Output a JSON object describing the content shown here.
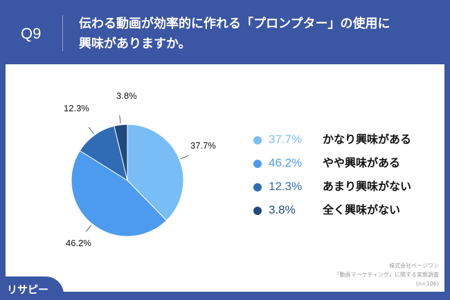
{
  "header": {
    "q_label": "Q9",
    "title_line1": "伝わる動画が効率的に作れる「プロンプター」の使用に",
    "title_line2": "興味がありますか。"
  },
  "logo": "リサピー",
  "source": {
    "line1": "株式会社ページワン",
    "line2": "「動画マーケティング」に関する実態調査",
    "line3": "(n=106)"
  },
  "chart_data": {
    "type": "pie",
    "categories": [
      "かなり興味がある",
      "やや興味がある",
      "あまり興味がない",
      "全く興味がない"
    ],
    "values": [
      37.7,
      46.2,
      12.3,
      3.8
    ],
    "data_labels": [
      "37.7%",
      "46.2%",
      "12.3%",
      "3.8%"
    ],
    "colors": [
      "#79bdf6",
      "#4d9bef",
      "#2f6cb3",
      "#1f4a7e"
    ],
    "legend_position": "right",
    "start": "top",
    "direction": "clockwise"
  }
}
